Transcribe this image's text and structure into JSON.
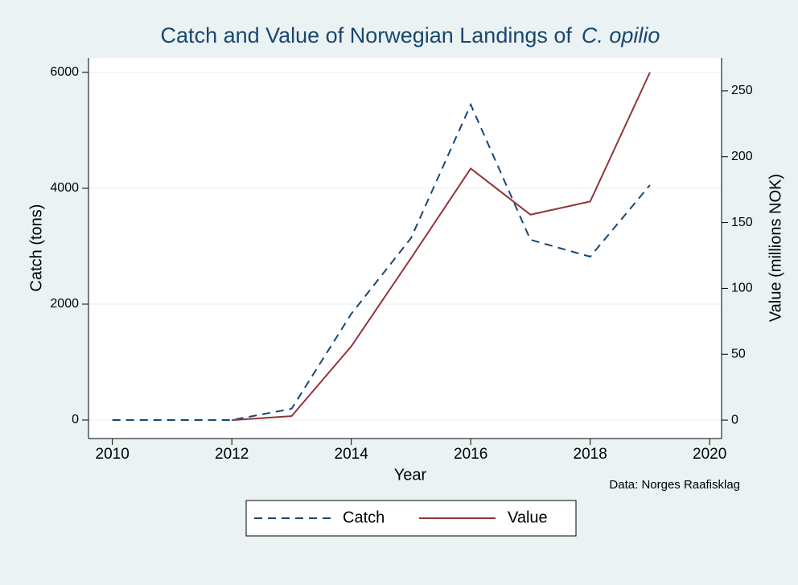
{
  "chart_data": {
    "type": "line",
    "title": "Catch and Value of Norwegian Landings of",
    "title_italic": "C. opilio",
    "xlabel": "Year",
    "ylabel": "Catch (tons)",
    "y2label": "Value (millions NOK)",
    "note": "Data: Norges Raafisklag",
    "x": [
      2010,
      2011,
      2012,
      2013,
      2014,
      2015,
      2016,
      2017,
      2018,
      2019
    ],
    "series": [
      {
        "name": "Catch",
        "color": "#1a476f",
        "dash": true,
        "values": [
          0,
          0,
          0,
          194,
          1833,
          3140,
          5444,
          3111,
          2819,
          4055
        ]
      },
      {
        "name": "Value",
        "color": "#90353b",
        "dash": false,
        "axis": "y2",
        "values": [
          null,
          null,
          0,
          3,
          56,
          123,
          191,
          156,
          166,
          264
        ]
      }
    ],
    "xlim": [
      2009.6,
      2020.2
    ],
    "xticks": [
      2010,
      2012,
      2014,
      2016,
      2018,
      2020
    ],
    "ylim": [
      -320,
      6250
    ],
    "yticks": [
      0,
      2000,
      4000,
      6000
    ],
    "y2lim": [
      -14,
      275
    ],
    "y2ticks": [
      0,
      50,
      100,
      150,
      200,
      250
    ],
    "grid": true,
    "legend": "bottom"
  }
}
